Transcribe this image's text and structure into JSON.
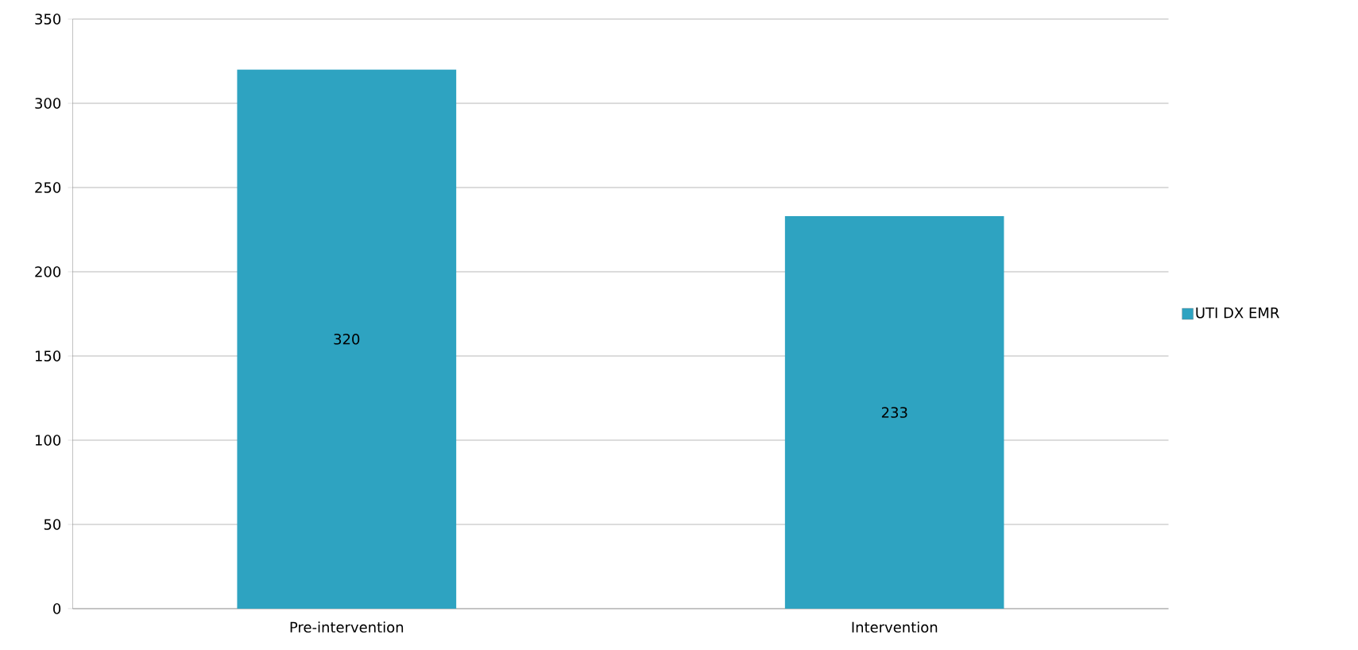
{
  "chart_data": {
    "type": "bar",
    "categories": [
      "Pre-intervention",
      "Intervention"
    ],
    "series": [
      {
        "name": "UTI DX EMR",
        "color": "#2ea3c1",
        "values": [
          320,
          233
        ]
      }
    ],
    "ylim": [
      0,
      350
    ],
    "yticks": [
      0,
      50,
      100,
      150,
      200,
      250,
      300,
      350
    ],
    "grid": "y",
    "legend": "right",
    "data_labels": true
  }
}
